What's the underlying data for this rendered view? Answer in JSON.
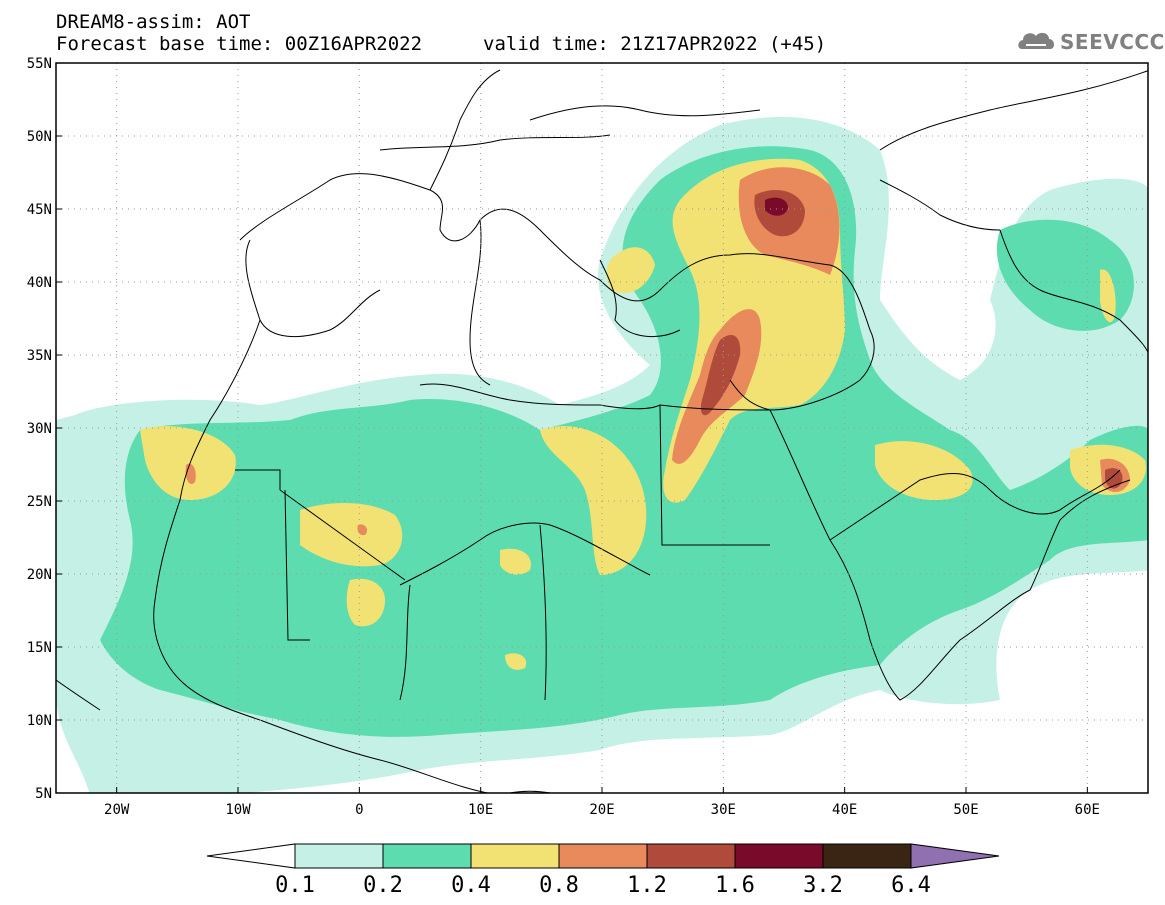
{
  "header": {
    "title_line1": "DREAM8-assim: AOT",
    "title_line2": "Forecast base time: 00Z16APR2022",
    "valid_time": "valid time: 21Z17APR2022 (+45)",
    "logo_text": "SEEVCCC",
    "logo_icon": "cloud-icon"
  },
  "map": {
    "projection": "latlon",
    "lon_range": [
      -25,
      65
    ],
    "lat_range": [
      5,
      55
    ],
    "lon_ticks": [
      {
        "value": -20,
        "label": "20W"
      },
      {
        "value": -10,
        "label": "10W"
      },
      {
        "value": 0,
        "label": "0"
      },
      {
        "value": 10,
        "label": "10E"
      },
      {
        "value": 20,
        "label": "20E"
      },
      {
        "value": 30,
        "label": "30E"
      },
      {
        "value": 40,
        "label": "40E"
      },
      {
        "value": 50,
        "label": "50E"
      },
      {
        "value": 60,
        "label": "60E"
      }
    ],
    "lat_ticks": [
      {
        "value": 55,
        "label": "55N"
      },
      {
        "value": 50,
        "label": "50N"
      },
      {
        "value": 45,
        "label": "45N"
      },
      {
        "value": 40,
        "label": "40N"
      },
      {
        "value": 35,
        "label": "35N"
      },
      {
        "value": 30,
        "label": "30N"
      },
      {
        "value": 25,
        "label": "25N"
      },
      {
        "value": 20,
        "label": "20N"
      },
      {
        "value": 15,
        "label": "15N"
      },
      {
        "value": 10,
        "label": "10N"
      },
      {
        "value": 5,
        "label": "5N"
      }
    ],
    "grid": true
  },
  "colorbar": {
    "levels": [
      "0.1",
      "0.2",
      "0.4",
      "0.8",
      "1.2",
      "1.6",
      "3.2",
      "6.4"
    ],
    "colors": [
      "#c4f0e6",
      "#5ddcb0",
      "#f2e274",
      "#e88a5c",
      "#b04a3a",
      "#7a0a2a",
      "#3a2414",
      "#9070b0"
    ],
    "under_color": "#ffffff"
  }
}
